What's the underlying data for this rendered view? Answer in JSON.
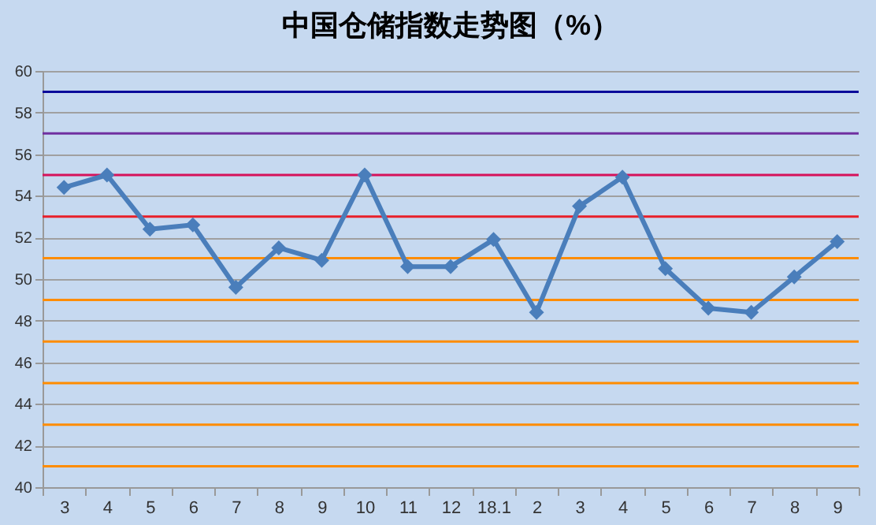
{
  "chart_data": {
    "type": "line",
    "title": "中国仓储指数走势图（%）",
    "categories": [
      "3",
      "4",
      "5",
      "6",
      "7",
      "8",
      "9",
      "10",
      "11",
      "12",
      "18.1",
      "2",
      "3",
      "4",
      "5",
      "6",
      "7",
      "8",
      "9"
    ],
    "series": [
      {
        "color": "#4a7ebb",
        "values": [
          54.4,
          55.0,
          52.4,
          52.6,
          49.6,
          51.5,
          50.9,
          55.0,
          50.6,
          50.6,
          51.9,
          48.4,
          53.5,
          54.9,
          50.5,
          48.6,
          48.4,
          50.1,
          51.8
        ]
      }
    ],
    "ylim": [
      40,
      60
    ],
    "yticks": [
      40,
      42,
      44,
      46,
      48,
      50,
      52,
      54,
      56,
      58,
      60
    ],
    "grid": "y",
    "marker": "diamond",
    "line_style": "solid",
    "ref_lines": [
      {
        "axis": "y",
        "value": 41,
        "color": "#ff8c00"
      },
      {
        "axis": "y",
        "value": 43,
        "color": "#ff8c00"
      },
      {
        "axis": "y",
        "value": 45,
        "color": "#ff8c00"
      },
      {
        "axis": "y",
        "value": 47,
        "color": "#ff8c00"
      },
      {
        "axis": "y",
        "value": 49,
        "color": "#ff8c00"
      },
      {
        "axis": "y",
        "value": 51,
        "color": "#ff8c00"
      },
      {
        "axis": "y",
        "value": 53,
        "color": "#e8202a"
      },
      {
        "axis": "y",
        "value": 55,
        "color": "#d6125a"
      },
      {
        "axis": "y",
        "value": 57,
        "color": "#7030a0"
      },
      {
        "axis": "y",
        "value": 59,
        "color": "#0a0a9a"
      }
    ]
  }
}
